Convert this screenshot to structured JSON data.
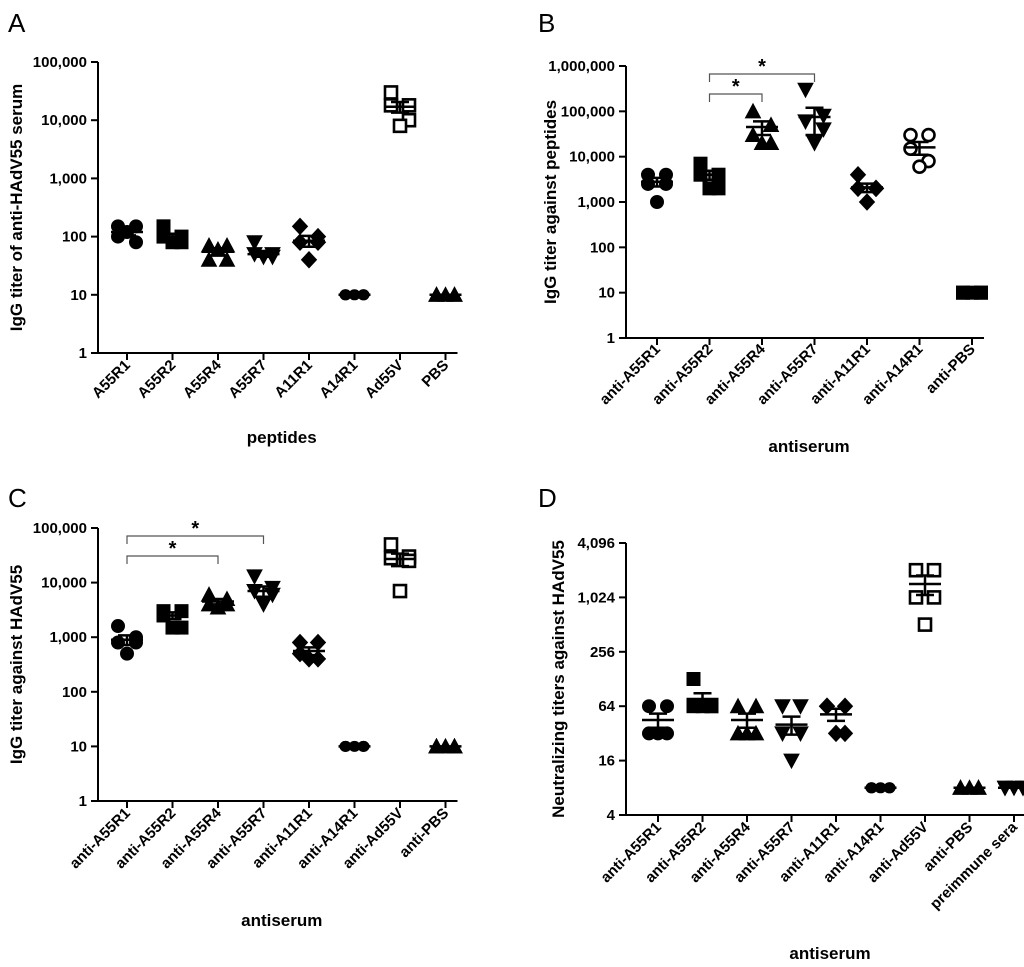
{
  "chart_data": [
    {
      "panel": "A",
      "type": "scatter",
      "scale": "log10",
      "ylabel": "IgG titer of anti-HAdV55 serum",
      "xlabel": "peptides",
      "yticks": [
        "1",
        "10",
        "100",
        "1,000",
        "10,000",
        "100,000"
      ],
      "ylim": [
        1,
        100000
      ],
      "categories": [
        {
          "label": "A55R1",
          "marker": "circle",
          "values": [
            100,
            150,
            150,
            80,
            120
          ],
          "mean": 120,
          "sem": 15
        },
        {
          "label": "A55R2",
          "marker": "square",
          "values": [
            150,
            100,
            100,
            80,
            80
          ],
          "mean": 100,
          "sem": 12
        },
        {
          "label": "A55R4",
          "marker": "triangle-up",
          "values": [
            70,
            70,
            40,
            40,
            60
          ],
          "mean": 55,
          "sem": 8
        },
        {
          "label": "A55R7",
          "marker": "triangle-down",
          "values": [
            80,
            50,
            50,
            45,
            45
          ],
          "mean": 50,
          "sem": 5
        },
        {
          "label": "A11R1",
          "marker": "diamond",
          "values": [
            150,
            100,
            80,
            80,
            40
          ],
          "mean": 85,
          "sem": 18
        },
        {
          "label": "A14R1",
          "marker": "hexagon",
          "values": [
            10,
            10,
            10,
            10,
            10
          ],
          "mean": 10,
          "sem": 0
        },
        {
          "label": "Ad55V",
          "marker": "square-open",
          "values": [
            30000,
            18000,
            18000,
            10000,
            8000
          ],
          "mean": 17000,
          "sem": 3500
        },
        {
          "label": "PBS",
          "marker": "triangle-up",
          "values": [
            10,
            10,
            10,
            10,
            10
          ],
          "mean": 10,
          "sem": 0
        }
      ],
      "significance": []
    },
    {
      "panel": "B",
      "type": "scatter",
      "scale": "log10",
      "ylabel": "IgG titer against peptides",
      "xlabel": "antiserum",
      "yticks": [
        "1",
        "10",
        "100",
        "1,000",
        "10,000",
        "100,000",
        "1,000,000"
      ],
      "ylim": [
        1,
        1000000
      ],
      "categories": [
        {
          "label": "anti-A55R1",
          "marker": "circle",
          "values": [
            4000,
            4000,
            2500,
            2500,
            1000
          ],
          "mean": 2800,
          "sem": 600
        },
        {
          "label": "anti-A55R2",
          "marker": "square",
          "values": [
            7000,
            4000,
            4000,
            2000,
            2000
          ],
          "mean": 4000,
          "sem": 900
        },
        {
          "label": "anti-A55R4",
          "marker": "triangle-up",
          "values": [
            100000,
            50000,
            30000,
            20000,
            20000
          ],
          "mean": 45000,
          "sem": 15000
        },
        {
          "label": "anti-A55R7",
          "marker": "triangle-down",
          "values": [
            300000,
            80000,
            60000,
            40000,
            20000
          ],
          "mean": 75000,
          "sem": 45000
        },
        {
          "label": "anti-A11R1",
          "marker": "diamond",
          "values": [
            4000,
            2000,
            2000,
            2000,
            1000
          ],
          "mean": 2100,
          "sem": 450
        },
        {
          "label": "anti-A14R1",
          "marker": "circle-open",
          "values": [
            30000,
            30000,
            15000,
            8000,
            6000
          ],
          "mean": 16000,
          "sem": 5000
        },
        {
          "label": "anti-PBS",
          "marker": "square",
          "values": [
            10,
            10,
            10,
            10,
            10
          ],
          "mean": 10,
          "sem": 0
        }
      ],
      "significance": [
        {
          "from": "anti-A55R2",
          "to": "anti-A55R4",
          "label": "*"
        },
        {
          "from": "anti-A55R2",
          "to": "anti-A55R7",
          "label": "*"
        }
      ]
    },
    {
      "panel": "C",
      "type": "scatter",
      "scale": "log10",
      "ylabel": "IgG titer against HAdV55",
      "xlabel": "antiserum",
      "yticks": [
        "1",
        "10",
        "100",
        "1,000",
        "10,000",
        "100,000"
      ],
      "ylim": [
        1,
        100000
      ],
      "categories": [
        {
          "label": "anti-A55R1",
          "marker": "circle",
          "values": [
            1600,
            1000,
            800,
            800,
            500
          ],
          "mean": 900,
          "sem": 180
        },
        {
          "label": "anti-A55R2",
          "marker": "square",
          "values": [
            3000,
            3000,
            2500,
            1500,
            1500
          ],
          "mean": 2500,
          "sem": 350
        },
        {
          "label": "anti-A55R4",
          "marker": "triangle-up",
          "values": [
            6000,
            5000,
            4000,
            4000,
            3500
          ],
          "mean": 4500,
          "sem": 500
        },
        {
          "label": "anti-A55R7",
          "marker": "triangle-down",
          "values": [
            13000,
            8000,
            7000,
            6000,
            4000
          ],
          "mean": 7000,
          "sem": 1500
        },
        {
          "label": "anti-A11R1",
          "marker": "diamond",
          "values": [
            800,
            800,
            500,
            400,
            400
          ],
          "mean": 560,
          "sem": 90
        },
        {
          "label": "anti-A14R1",
          "marker": "hexagon",
          "values": [
            10,
            10,
            10,
            10,
            10
          ],
          "mean": 10,
          "sem": 0
        },
        {
          "label": "anti-Ad55V",
          "marker": "square-open",
          "values": [
            50000,
            30000,
            28000,
            25000,
            7000
          ],
          "mean": 27000,
          "sem": 7000
        },
        {
          "label": "anti-PBS",
          "marker": "triangle-up",
          "values": [
            10,
            10,
            10,
            10,
            10
          ],
          "mean": 10,
          "sem": 0
        }
      ],
      "significance": [
        {
          "from": "anti-A55R1",
          "to": "anti-A55R4",
          "label": "*"
        },
        {
          "from": "anti-A55R1",
          "to": "anti-A55R7",
          "label": "*"
        }
      ]
    },
    {
      "panel": "D",
      "type": "scatter",
      "scale": "log4",
      "ylabel": "Neutralizing titers against HAdV55",
      "xlabel": "antiserum",
      "yticks": [
        "4",
        "16",
        "64",
        "256",
        "1,024",
        "4,096"
      ],
      "ylim": [
        4,
        4096
      ],
      "categories": [
        {
          "label": "anti-A55R1",
          "marker": "circle",
          "values": [
            64,
            64,
            32,
            32,
            32
          ],
          "mean": 45,
          "sem": 8
        },
        {
          "label": "anti-A55R2",
          "marker": "square",
          "values": [
            128,
            64,
            64,
            64,
            64
          ],
          "mean": 77,
          "sem": 12
        },
        {
          "label": "anti-A55R4",
          "marker": "triangle-up",
          "values": [
            64,
            64,
            32,
            32,
            32
          ],
          "mean": 45,
          "sem": 8
        },
        {
          "label": "anti-A55R7",
          "marker": "triangle-down",
          "values": [
            64,
            64,
            32,
            32,
            16
          ],
          "mean": 40,
          "sem": 9
        },
        {
          "label": "anti-A11R1",
          "marker": "diamond",
          "values": [
            64,
            64,
            64,
            32,
            32
          ],
          "mean": 52,
          "sem": 8
        },
        {
          "label": "anti-A14R1",
          "marker": "hexagon",
          "values": [
            8,
            8,
            8,
            8,
            8
          ],
          "mean": 8,
          "sem": 0
        },
        {
          "label": "anti-Ad55V",
          "marker": "square-open",
          "values": [
            2048,
            2048,
            1024,
            1024,
            512
          ],
          "mean": 1440,
          "sem": 350
        },
        {
          "label": "anti-PBS",
          "marker": "triangle-up",
          "values": [
            8,
            8,
            8,
            8,
            8
          ],
          "mean": 8,
          "sem": 0
        },
        {
          "label": "preimmune sera",
          "marker": "triangle-down",
          "values": [
            8,
            8,
            8,
            8,
            8
          ],
          "mean": 8,
          "sem": 0
        }
      ],
      "significance": []
    }
  ]
}
